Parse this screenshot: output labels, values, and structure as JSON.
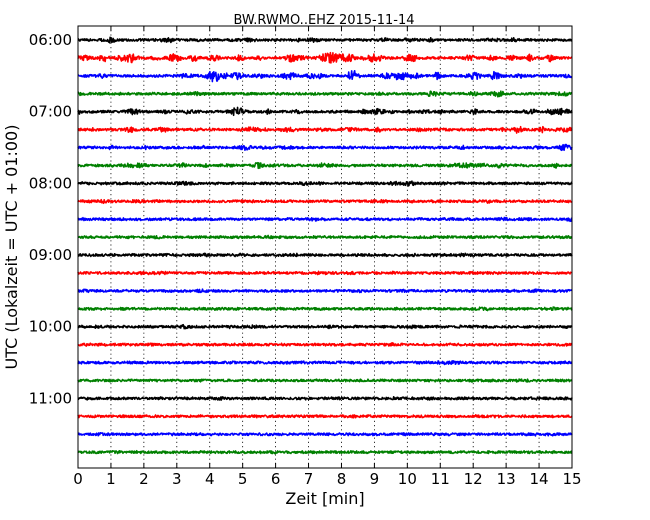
{
  "chart_data": {
    "type": "line",
    "title": "BW.RWMO..EHZ 2015-11-14",
    "xlabel": "Zeit  [min]",
    "ylabel": "UTC (Lokalzeit = UTC + 01:00)",
    "xlim": [
      0,
      15
    ],
    "x_ticks": [
      "0",
      "1",
      "2",
      "3",
      "4",
      "5",
      "6",
      "7",
      "8",
      "9",
      "10",
      "11",
      "12",
      "13",
      "14",
      "15"
    ],
    "y_tick_labels": [
      "06:00",
      "07:00",
      "08:00",
      "09:00",
      "10:00",
      "11:00"
    ],
    "grid": "vertical dotted lines at each minute",
    "trace_interval_minutes": 15,
    "series": [
      {
        "start": "06:00",
        "color": "#000000",
        "activity": 0.35
      },
      {
        "start": "06:15",
        "color": "#ff0000",
        "activity": 0.9
      },
      {
        "start": "06:30",
        "color": "#0000ff",
        "activity": 0.8
      },
      {
        "start": "06:45",
        "color": "#008000",
        "activity": 0.35
      },
      {
        "start": "07:00",
        "color": "#000000",
        "activity": 0.6
      },
      {
        "start": "07:15",
        "color": "#ff0000",
        "activity": 0.55
      },
      {
        "start": "07:30",
        "color": "#0000ff",
        "activity": 0.4
      },
      {
        "start": "07:45",
        "color": "#008000",
        "activity": 0.5
      },
      {
        "start": "08:00",
        "color": "#000000",
        "activity": 0.25
      },
      {
        "start": "08:15",
        "color": "#ff0000",
        "activity": 0.2
      },
      {
        "start": "08:30",
        "color": "#0000ff",
        "activity": 0.2
      },
      {
        "start": "08:45",
        "color": "#008000",
        "activity": 0.15
      },
      {
        "start": "09:00",
        "color": "#000000",
        "activity": 0.2
      },
      {
        "start": "09:15",
        "color": "#ff0000",
        "activity": 0.15
      },
      {
        "start": "09:30",
        "color": "#0000ff",
        "activity": 0.15
      },
      {
        "start": "09:45",
        "color": "#008000",
        "activity": 0.15
      },
      {
        "start": "10:00",
        "color": "#000000",
        "activity": 0.2
      },
      {
        "start": "10:15",
        "color": "#ff0000",
        "activity": 0.15
      },
      {
        "start": "10:30",
        "color": "#0000ff",
        "activity": 0.2
      },
      {
        "start": "10:45",
        "color": "#008000",
        "activity": 0.1
      },
      {
        "start": "11:00",
        "color": "#000000",
        "activity": 0.15
      },
      {
        "start": "11:15",
        "color": "#ff0000",
        "activity": 0.1
      },
      {
        "start": "11:30",
        "color": "#0000ff",
        "activity": 0.1
      },
      {
        "start": "11:45",
        "color": "#008000",
        "activity": 0.1
      }
    ]
  }
}
